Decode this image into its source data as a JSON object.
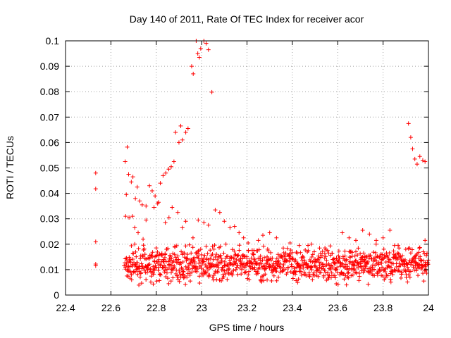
{
  "chart_data": {
    "type": "scatter",
    "title": "Day 140 of 2011, Rate Of TEC Index for receiver acor",
    "xlabel": "GPS time / hours",
    "ylabel": "ROTI / TECUs",
    "xlim": [
      22.4,
      24.0
    ],
    "ylim": [
      0.0,
      0.1
    ],
    "xticks": [
      22.4,
      22.6,
      22.8,
      23.0,
      23.2,
      23.4,
      23.6,
      23.8,
      24.0
    ],
    "xtick_labels": [
      "22.4",
      "22.6",
      "22.8",
      "23",
      "23.2",
      "23.4",
      "23.6",
      "23.8",
      "24"
    ],
    "yticks": [
      0,
      0.01,
      0.02,
      0.03,
      0.04,
      0.05,
      0.06,
      0.07,
      0.08,
      0.09,
      0.1
    ],
    "ytick_labels": [
      "0",
      "0.01",
      "0.02",
      "0.03",
      "0.04",
      "0.05",
      "0.06",
      "0.07",
      "0.08",
      "0.09",
      "0.1"
    ],
    "grid": true,
    "marker": "+",
    "color": "#ff0000",
    "series": [
      {
        "points": [
          [
            22.533,
            0.048
          ],
          [
            22.533,
            0.0418
          ],
          [
            22.533,
            0.021
          ],
          [
            22.533,
            0.0122
          ],
          [
            22.533,
            0.0115
          ],
          [
            22.663,
            0.0525
          ],
          [
            22.672,
            0.0582
          ],
          [
            22.668,
            0.0395
          ],
          [
            22.678,
            0.0475
          ],
          [
            22.69,
            0.0445
          ],
          [
            22.697,
            0.0465
          ],
          [
            22.708,
            0.038
          ],
          [
            22.716,
            0.0425
          ],
          [
            22.727,
            0.037
          ],
          [
            22.738,
            0.0355
          ],
          [
            22.755,
            0.035
          ],
          [
            22.77,
            0.043
          ],
          [
            22.782,
            0.041
          ],
          [
            22.795,
            0.039
          ],
          [
            22.806,
            0.036
          ],
          [
            22.818,
            0.044
          ],
          [
            22.83,
            0.047
          ],
          [
            22.842,
            0.048
          ],
          [
            22.855,
            0.0495
          ],
          [
            22.866,
            0.0505
          ],
          [
            22.878,
            0.0525
          ],
          [
            22.885,
            0.064
          ],
          [
            22.9,
            0.06
          ],
          [
            22.908,
            0.0665
          ],
          [
            22.915,
            0.061
          ],
          [
            22.93,
            0.064
          ],
          [
            22.94,
            0.0655
          ],
          [
            22.956,
            0.09
          ],
          [
            22.963,
            0.087
          ],
          [
            22.976,
            0.1
          ],
          [
            22.983,
            0.095
          ],
          [
            22.99,
            0.0935
          ],
          [
            22.996,
            0.097
          ],
          [
            23.01,
            0.1
          ],
          [
            23.02,
            0.099
          ],
          [
            23.03,
            0.0965
          ],
          [
            23.045,
            0.0798
          ],
          [
            22.665,
            0.031
          ],
          [
            22.68,
            0.0305
          ],
          [
            22.695,
            0.031
          ],
          [
            22.705,
            0.0265
          ],
          [
            22.72,
            0.0245
          ],
          [
            22.742,
            0.022
          ],
          [
            22.755,
            0.0295
          ],
          [
            22.79,
            0.0345
          ],
          [
            22.81,
            0.0365
          ],
          [
            22.84,
            0.0285
          ],
          [
            22.856,
            0.0305
          ],
          [
            22.87,
            0.0345
          ],
          [
            22.895,
            0.0325
          ],
          [
            22.915,
            0.0265
          ],
          [
            22.93,
            0.029
          ],
          [
            22.962,
            0.0225
          ],
          [
            22.985,
            0.0295
          ],
          [
            23.01,
            0.0285
          ],
          [
            23.03,
            0.0275
          ],
          [
            23.06,
            0.0335
          ],
          [
            23.08,
            0.0325
          ],
          [
            23.1,
            0.029
          ],
          [
            23.125,
            0.0265
          ],
          [
            23.145,
            0.027
          ],
          [
            23.165,
            0.0245
          ],
          [
            23.185,
            0.0225
          ],
          [
            23.205,
            0.0205
          ],
          [
            23.25,
            0.0215
          ],
          [
            23.27,
            0.0235
          ],
          [
            23.3,
            0.0245
          ],
          [
            23.33,
            0.0225
          ],
          [
            23.36,
            0.0185
          ],
          [
            23.39,
            0.0205
          ],
          [
            23.43,
            0.0195
          ],
          [
            23.47,
            0.0175
          ],
          [
            23.52,
            0.0185
          ],
          [
            23.56,
            0.0165
          ],
          [
            23.62,
            0.0245
          ],
          [
            23.65,
            0.0225
          ],
          [
            23.68,
            0.0215
          ],
          [
            23.71,
            0.0255
          ],
          [
            23.74,
            0.024
          ],
          [
            23.77,
            0.0215
          ],
          [
            23.8,
            0.0225
          ],
          [
            23.83,
            0.0255
          ],
          [
            23.85,
            0.0195
          ],
          [
            23.87,
            0.0185
          ],
          [
            23.9,
            0.018
          ],
          [
            23.912,
            0.0675
          ],
          [
            23.922,
            0.062
          ],
          [
            23.93,
            0.0575
          ],
          [
            23.94,
            0.0535
          ],
          [
            23.95,
            0.0515
          ],
          [
            23.962,
            0.0545
          ],
          [
            23.975,
            0.053
          ],
          [
            23.985,
            0.0525
          ],
          [
            23.96,
            0.0185
          ],
          [
            23.985,
            0.0215
          ]
        ],
        "band": {
          "x_start": 22.66,
          "x_end": 24.0,
          "y_min": 0.003,
          "y_max": 0.02,
          "typical": 0.012,
          "count": 1100
        }
      }
    ]
  }
}
